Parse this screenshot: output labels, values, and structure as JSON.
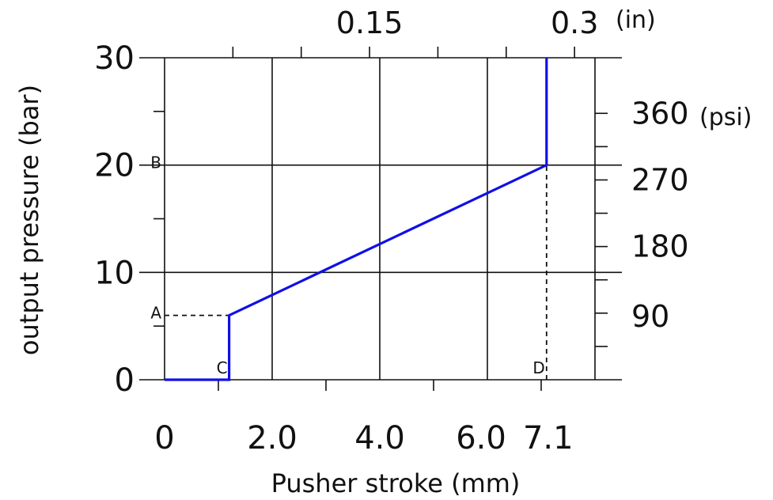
{
  "chart_data": {
    "type": "line",
    "title": "",
    "xlabel": "Pusher stroke (mm)",
    "ylabel": "output  pressure (bar)",
    "xlim": [
      0,
      8
    ],
    "ylim": [
      0,
      30
    ],
    "grid": true,
    "x_ticks": [
      {
        "value": 0,
        "label": "0"
      },
      {
        "value": 2,
        "label": "2.0"
      },
      {
        "value": 4,
        "label": "4.0"
      },
      {
        "value": 6,
        "label": "6.0"
      },
      {
        "value": 7.1,
        "label": "7.1"
      }
    ],
    "y_ticks": [
      {
        "value": 0,
        "label": "0"
      },
      {
        "value": 10,
        "label": "10"
      },
      {
        "value": 20,
        "label": "20"
      },
      {
        "value": 30,
        "label": "30"
      }
    ],
    "top_axis": {
      "unit": "(in)",
      "ticks": [
        {
          "value": 0.15,
          "label": "0.15"
        },
        {
          "value": 0.3,
          "label": "0.3"
        }
      ]
    },
    "right_axis": {
      "unit": "(psi)",
      "ticks": [
        {
          "value": 90,
          "label": "90"
        },
        {
          "value": 180,
          "label": "180"
        },
        {
          "value": 270,
          "label": "270"
        },
        {
          "value": 360,
          "label": "360"
        }
      ]
    },
    "series": [
      {
        "color": "#1010e6",
        "x": [
          0,
          1.2,
          1.2,
          7.1,
          7.1
        ],
        "y": [
          0,
          0,
          6,
          20,
          30
        ]
      }
    ],
    "reference_lines": [
      {
        "from": [
          0,
          6
        ],
        "to": [
          1.2,
          6
        ]
      },
      {
        "from": [
          7.1,
          0
        ],
        "to": [
          7.1,
          20
        ]
      }
    ],
    "annotations": [
      {
        "label": "A",
        "x": 0,
        "y": 6,
        "side": "left"
      },
      {
        "label": "B",
        "x": 0,
        "y": 20,
        "side": "left"
      },
      {
        "label": "C",
        "x": 1.2,
        "y": 0,
        "side": "left-above"
      },
      {
        "label": "D",
        "x": 7.1,
        "y": 0,
        "side": "left-above"
      }
    ]
  }
}
